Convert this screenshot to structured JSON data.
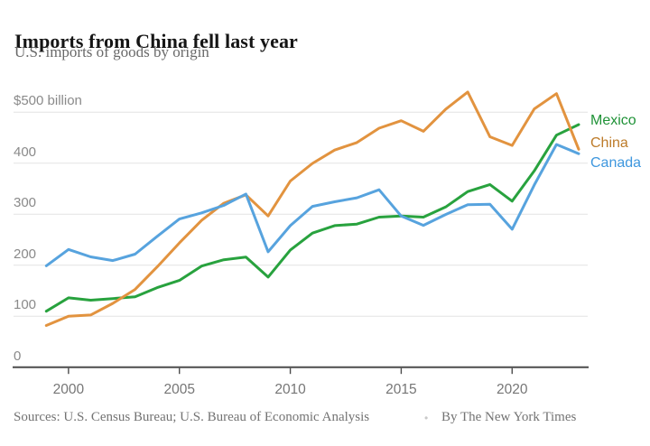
{
  "header": {
    "title": "Imports from China fell last year",
    "subtitle": "U.S. imports of goods by origin"
  },
  "chart_data": {
    "type": "line",
    "x": [
      1999,
      2000,
      2001,
      2002,
      2003,
      2004,
      2005,
      2006,
      2007,
      2008,
      2009,
      2010,
      2011,
      2012,
      2013,
      2014,
      2015,
      2016,
      2017,
      2018,
      2019,
      2020,
      2021,
      2022,
      2023
    ],
    "series": [
      {
        "name": "Mexico",
        "line_color": "#28a23e",
        "label_color": "#1f9237",
        "values": [
          109.7,
          135.9,
          131.3,
          134.6,
          138.1,
          155.9,
          170.1,
          198.3,
          210.7,
          215.9,
          176.7,
          229.7,
          262.9,
          277.6,
          280.5,
          294.2,
          296.4,
          294.2,
          314.0,
          344.3,
          358.0,
          325.4,
          384.7,
          454.8,
          475.6
        ]
      },
      {
        "name": "China",
        "line_color": "#e2933f",
        "label_color": "#bd7b29",
        "values": [
          81.8,
          100.0,
          102.3,
          125.2,
          152.4,
          196.7,
          243.5,
          287.8,
          321.4,
          337.8,
          296.4,
          364.9,
          399.4,
          425.6,
          440.4,
          468.5,
          483.2,
          462.5,
          505.5,
          539.5,
          451.7,
          434.7,
          506.4,
          536.3,
          427.2
        ]
      },
      {
        "name": "Canada",
        "line_color": "#57a3de",
        "label_color": "#3e97de",
        "values": [
          198.7,
          230.8,
          216.3,
          209.1,
          221.6,
          256.4,
          290.4,
          302.4,
          317.1,
          339.5,
          226.2,
          277.6,
          315.3,
          324.2,
          332.1,
          347.8,
          296.2,
          278.1,
          299.3,
          318.5,
          319.4,
          270.4,
          357.2,
          436.6,
          418.6
        ]
      }
    ],
    "title": "Imports from China fell last year",
    "subtitle": "U.S. imports of goods by origin",
    "xlabel": "",
    "ylabel": "$ billion",
    "ylim": [
      0,
      560
    ],
    "xlim": [
      1999,
      2023
    ],
    "grid": "horizontal",
    "legend_position": "right",
    "y_ticks": [
      {
        "label": "$500 billion",
        "value": 500
      },
      {
        "label": "400",
        "value": 400
      },
      {
        "label": "300",
        "value": 300
      },
      {
        "label": "200",
        "value": 200
      },
      {
        "label": "100",
        "value": 100
      },
      {
        "label": "0",
        "value": 0
      }
    ],
    "x_ticks": [
      {
        "label": "2000",
        "value": 2000
      },
      {
        "label": "2005",
        "value": 2005
      },
      {
        "label": "2010",
        "value": 2010
      },
      {
        "label": "2015",
        "value": 2015
      },
      {
        "label": "2020",
        "value": 2020
      }
    ]
  },
  "footer": {
    "sources": "Sources: U.S. Census Bureau; U.S. Bureau of Economic Analysis",
    "separator": "•",
    "byline": "By The New York Times"
  },
  "colors": {
    "title_text": "#151515",
    "subtitle_text": "#696969",
    "axis_line": "#4c4c4c",
    "gridline": "#e3e3e3",
    "y_tick_text": "#8a8a8a",
    "x_tick_text": "#767676",
    "source_text": "#737373"
  }
}
